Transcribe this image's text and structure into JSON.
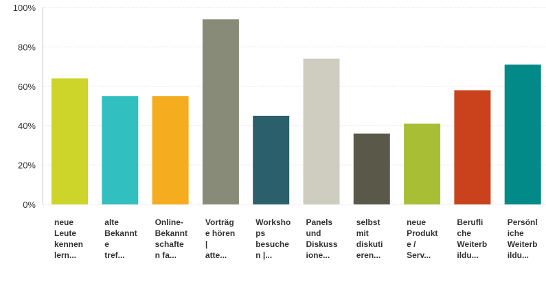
{
  "chart_data": {
    "type": "bar",
    "categories": [
      "neue Leute kennen lern...",
      "alte Bekannte tref...",
      "Online-Bekanntschaften fa...",
      "Vorträge hören | atte...",
      "Workshops besuchen |...",
      "Panels und Diskussione...",
      "selbst mit diskutieren...",
      "neue Produkte / Serv...",
      "Berufliche Weiterbildu...",
      "Persönliche Weiterbildu..."
    ],
    "values": [
      64,
      55,
      55,
      94,
      45,
      74,
      36,
      41,
      58,
      71
    ],
    "colors": [
      "#cdd52a",
      "#31bfc0",
      "#f5ac1f",
      "#878b78",
      "#2c5f6c",
      "#cfcdbf",
      "#5a5949",
      "#a8be35",
      "#c9421c",
      "#018a88"
    ],
    "ylim": [
      0,
      100
    ],
    "yticks": [
      {
        "value": 0,
        "label": "0%"
      },
      {
        "value": 20,
        "label": "20%"
      },
      {
        "value": 40,
        "label": "40%"
      },
      {
        "value": 60,
        "label": "60%"
      },
      {
        "value": 80,
        "label": "80%"
      },
      {
        "value": 100,
        "label": "100%"
      }
    ],
    "grid": true
  }
}
